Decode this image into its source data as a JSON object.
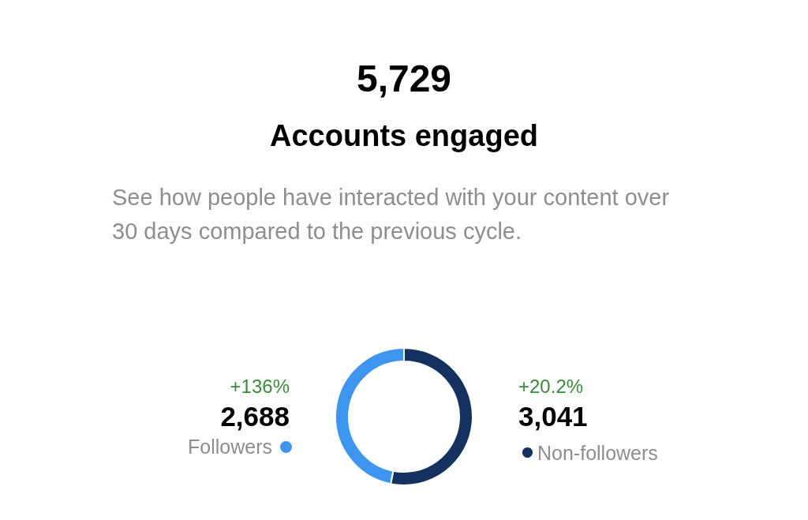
{
  "chart_data": {
    "type": "donut",
    "title": "5,729",
    "subtitle": "Accounts engaged",
    "annotations": [
      "See how people have interacted with your content over 30 days compared to the previous cycle.",
      "+136%",
      "+20.2%"
    ],
    "categories": [
      "Followers",
      "Non-followers"
    ],
    "values": [
      2688,
      3041
    ],
    "colors": [
      "#3d95ef",
      "#14315f"
    ],
    "value_labels": [
      "2,688",
      "3,041"
    ],
    "legend": "bottom"
  }
}
